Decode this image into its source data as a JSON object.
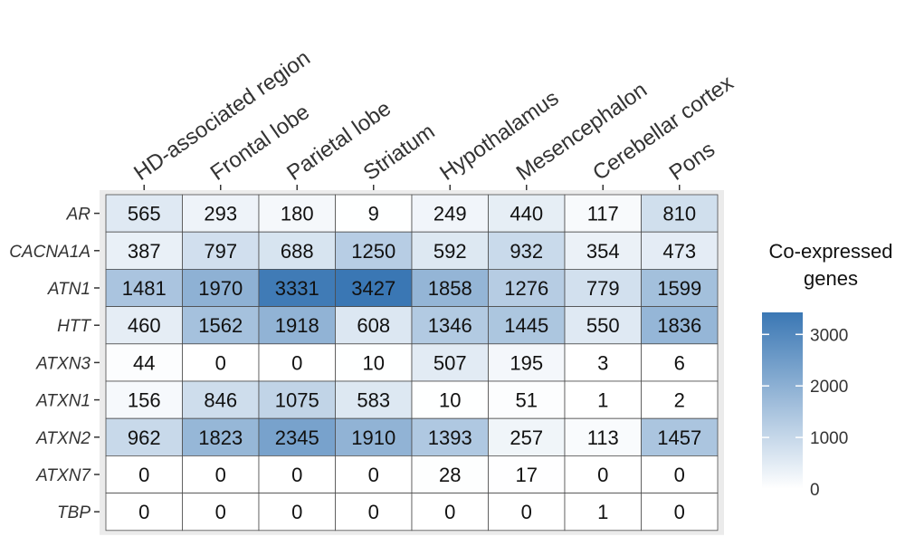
{
  "chart_data": {
    "type": "heatmap",
    "title": "",
    "xlabel": "",
    "ylabel": "",
    "x": [
      "HD-associated region",
      "Frontal lobe",
      "Parietal lobe",
      "Striatum",
      "Hypothalamus",
      "Mesencephalon",
      "Cerebellar cortex",
      "Pons"
    ],
    "y": [
      "AR",
      "CACNA1A",
      "ATN1",
      "HTT",
      "ATXN3",
      "ATXN1",
      "ATXN2",
      "ATXN7",
      "TBP"
    ],
    "values": [
      [
        565,
        293,
        180,
        9,
        249,
        440,
        117,
        810
      ],
      [
        387,
        797,
        688,
        1250,
        592,
        932,
        354,
        473
      ],
      [
        1481,
        1970,
        3331,
        3427,
        1858,
        1276,
        779,
        1599
      ],
      [
        460,
        1562,
        1918,
        608,
        1346,
        1445,
        550,
        1836
      ],
      [
        44,
        0,
        0,
        10,
        507,
        195,
        3,
        6
      ],
      [
        156,
        846,
        1075,
        583,
        10,
        51,
        1,
        2
      ],
      [
        962,
        1823,
        2345,
        1910,
        1393,
        257,
        113,
        1457
      ],
      [
        0,
        0,
        0,
        0,
        28,
        17,
        0,
        0
      ],
      [
        0,
        0,
        0,
        0,
        0,
        0,
        1,
        0
      ]
    ],
    "legend": {
      "title": "Co-expressed genes",
      "title_lines": [
        "Co-expressed",
        "genes"
      ],
      "ticks": [
        0,
        1000,
        2000,
        3000
      ],
      "range": [
        0,
        3427
      ],
      "colors": [
        "#ffffff",
        "#3a77b4"
      ],
      "placement": "right"
    },
    "grid": true
  }
}
